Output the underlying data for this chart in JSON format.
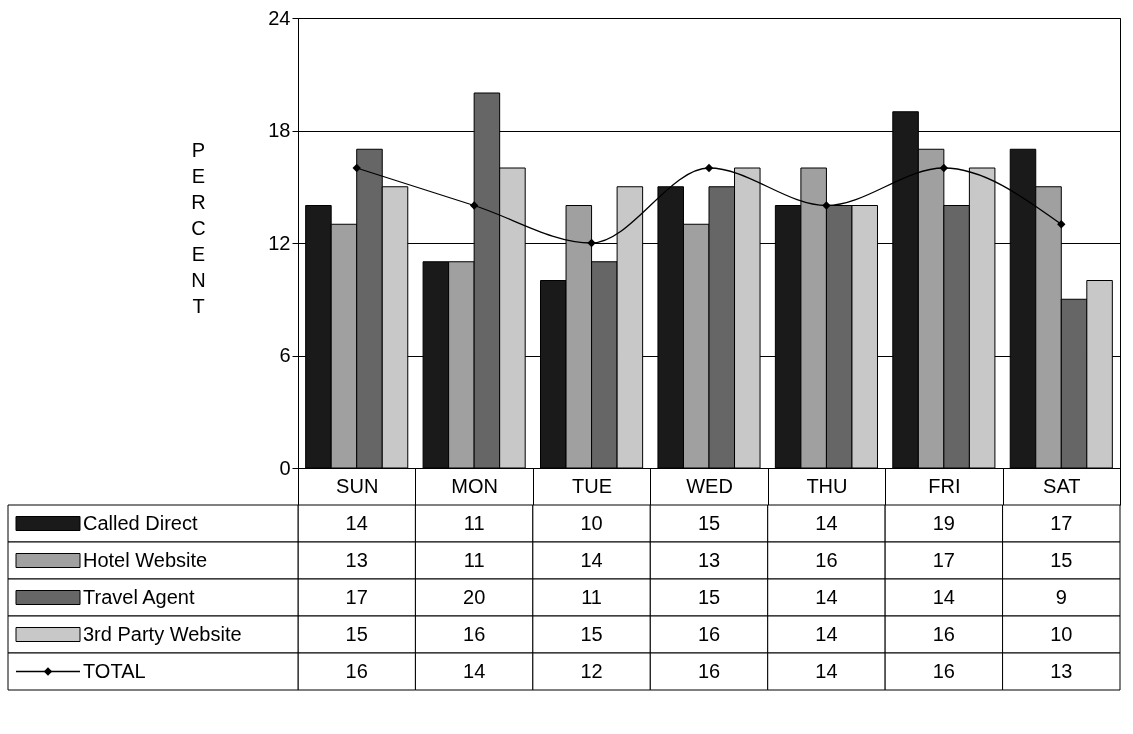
{
  "chart_data": {
    "type": "bar",
    "ylabel": "PERCENT",
    "categories": [
      "SUN",
      "MON",
      "TUE",
      "WED",
      "THU",
      "FRI",
      "SAT"
    ],
    "series": [
      {
        "name": "Called Direct",
        "color": "#1a1a1a",
        "values": [
          14,
          11,
          10,
          15,
          14,
          19,
          17
        ]
      },
      {
        "name": "Hotel Website",
        "color": "#a0a0a0",
        "values": [
          13,
          11,
          14,
          13,
          16,
          17,
          15
        ]
      },
      {
        "name": "Travel Agent",
        "color": "#666666",
        "values": [
          17,
          20,
          11,
          15,
          14,
          14,
          9
        ]
      },
      {
        "name": "3rd Party Website",
        "color": "#c8c8c8",
        "values": [
          15,
          16,
          15,
          16,
          14,
          16,
          10
        ]
      },
      {
        "name": "TOTAL",
        "type": "line",
        "color": "#000000",
        "marker": "diamond",
        "values": [
          16,
          14,
          12,
          16,
          14,
          16,
          13
        ]
      }
    ],
    "ylim": [
      0,
      24
    ],
    "yticks": [
      0,
      6,
      12,
      18,
      24
    ],
    "grid": "y",
    "legend": "bottom",
    "data_labels": true
  }
}
